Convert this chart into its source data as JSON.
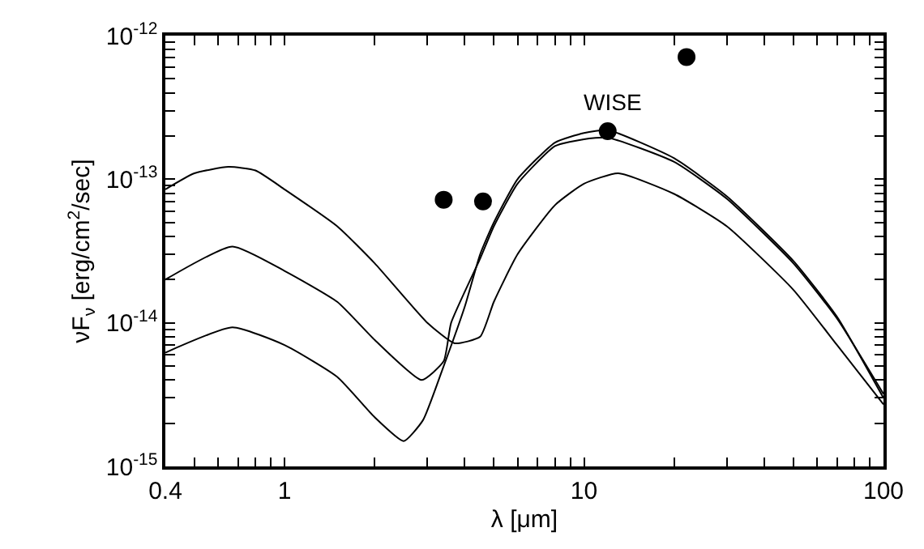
{
  "chart_data": {
    "type": "line",
    "xlabel": "λ [μm]",
    "ylabel": "νF$_{ν}$ [erg/cm$^{2}$/sec]",
    "log": "xy",
    "xlim": [
      0.4,
      100
    ],
    "ylim": [
      1e-15,
      1e-12
    ],
    "xticks": [
      0.4,
      {
        "value": 0.5,
        "label": null
      },
      {
        "value": 0.6,
        "label": null
      },
      {
        "value": 0.7,
        "label": null
      },
      {
        "value": 0.8,
        "label": null
      },
      {
        "value": 0.9,
        "label": null
      },
      1,
      {
        "value": 2,
        "label": null
      },
      {
        "value": 3,
        "label": null
      },
      {
        "value": 4,
        "label": null
      },
      {
        "value": 5,
        "label": null
      },
      {
        "value": 6,
        "label": null
      },
      {
        "value": 7,
        "label": null
      },
      {
        "value": 8,
        "label": null
      },
      {
        "value": 9,
        "label": null
      },
      10,
      {
        "value": 20,
        "label": null
      },
      {
        "value": 30,
        "label": null
      },
      {
        "value": 40,
        "label": null
      },
      {
        "value": 50,
        "label": null
      },
      {
        "value": 60,
        "label": null
      },
      {
        "value": 70,
        "label": null
      },
      {
        "value": 80,
        "label": null
      },
      {
        "value": 90,
        "label": null
      },
      100
    ],
    "yticks": [
      {
        "value": 1e-15,
        "label": "10$^{-15}$"
      },
      {
        "value": 2e-15,
        "label": null
      },
      {
        "value": 3e-15,
        "label": null
      },
      {
        "value": 4e-15,
        "label": null
      },
      {
        "value": 5e-15,
        "label": null
      },
      {
        "value": 6e-15,
        "label": null
      },
      {
        "value": 7e-15,
        "label": null
      },
      {
        "value": 8e-15,
        "label": null
      },
      {
        "value": 9e-15,
        "label": null
      },
      {
        "value": 1e-14,
        "label": "10$^{-14}$"
      },
      {
        "value": 2e-14,
        "label": null
      },
      {
        "value": 3e-14,
        "label": null
      },
      {
        "value": 4e-14,
        "label": null
      },
      {
        "value": 5e-14,
        "label": null
      },
      {
        "value": 6e-14,
        "label": null
      },
      {
        "value": 7e-14,
        "label": null
      },
      {
        "value": 8e-14,
        "label": null
      },
      {
        "value": 9e-14,
        "label": null
      },
      {
        "value": 1e-13,
        "label": "10$^{-13}$"
      },
      {
        "value": 2e-13,
        "label": null
      },
      {
        "value": 3e-13,
        "label": null
      },
      {
        "value": 4e-13,
        "label": null
      },
      {
        "value": 5e-13,
        "label": null
      },
      {
        "value": 6e-13,
        "label": null
      },
      {
        "value": 7e-13,
        "label": null
      },
      {
        "value": 8e-13,
        "label": null
      },
      {
        "value": 9e-13,
        "label": null
      },
      {
        "value": 1e-12,
        "label": "10$^{-12}$"
      }
    ],
    "annotations": [
      "WISE"
    ],
    "series": [
      {
        "color": "#000000",
        "marker": "none",
        "line_style": "solid",
        "x": [
          0.4,
          0.5,
          0.65,
          0.8,
          1.0,
          1.5,
          2.0,
          3.0,
          3.7,
          4.5,
          5,
          6,
          8,
          10,
          13,
          20,
          30,
          50,
          70,
          100
        ],
        "values": [
          8.5e-14,
          1.1e-13,
          1.22e-13,
          1.15e-13,
          8.5e-14,
          4.7e-14,
          2.6e-14,
          1e-14,
          7.2e-15,
          8e-15,
          1.4e-14,
          3e-14,
          6.6e-14,
          9.3e-14,
          1.1e-13,
          7.9e-14,
          4.7e-14,
          1.7e-14,
          7e-15,
          2.7e-15
        ]
      },
      {
        "color": "#000000",
        "marker": "none",
        "line_style": "solid",
        "x": [
          0.4,
          0.67,
          1.0,
          1.5,
          2.0,
          2.87,
          3.4,
          3.6,
          4.5,
          5,
          6,
          8,
          10,
          12,
          20,
          30,
          50,
          70,
          100
        ],
        "values": [
          2e-14,
          3.4e-14,
          2.3e-14,
          1.4e-14,
          7.6e-15,
          4e-15,
          5.4e-15,
          1e-14,
          2.8e-14,
          4.7e-14,
          9.3e-14,
          1.7e-13,
          1.9e-13,
          1.95e-13,
          1.32e-13,
          7.3e-14,
          2.6e-14,
          1.07e-14,
          3.2e-15
        ]
      },
      {
        "color": "#000000",
        "marker": "none",
        "line_style": "solid",
        "x": [
          0.4,
          0.67,
          1.0,
          1.5,
          2.0,
          2.5,
          2.9,
          3.4,
          4,
          4.5,
          5,
          6,
          8,
          10,
          12,
          20,
          30,
          50,
          70,
          100
        ],
        "values": [
          6.2e-15,
          9.3e-15,
          7e-15,
          4.2e-15,
          2.2e-15,
          1.5e-15,
          2.1e-15,
          5e-15,
          1.3e-14,
          3e-14,
          5e-14,
          1e-13,
          1.8e-13,
          2.1e-13,
          2.2e-13,
          1.4e-13,
          7.6e-14,
          2.7e-14,
          1.1e-14,
          3e-15
        ]
      },
      {
        "type": "scatter",
        "color": "#000000",
        "marker": "circle",
        "x": [
          3.4,
          4.6,
          12,
          22
        ],
        "values": [
          7.2e-14,
          7e-14,
          2.16e-13,
          7.1e-13
        ]
      }
    ]
  }
}
